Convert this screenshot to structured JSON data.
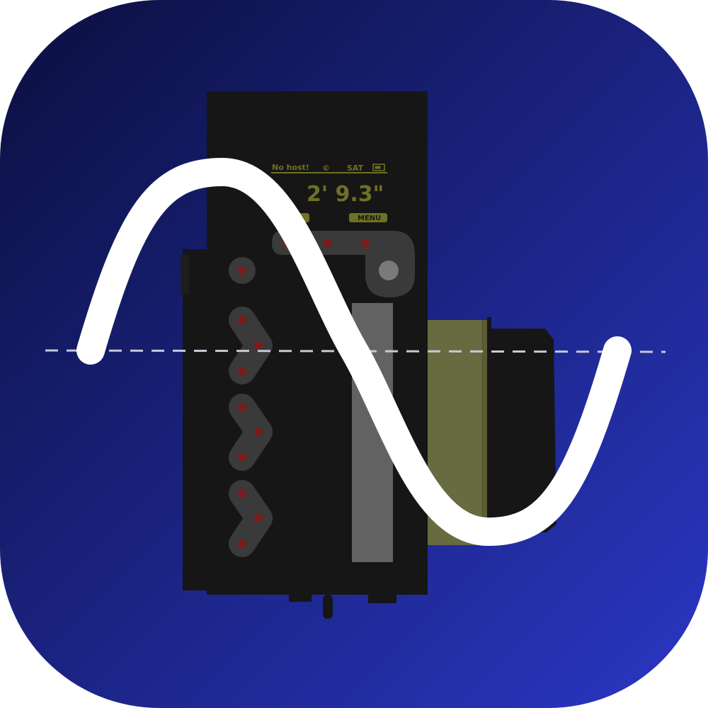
{
  "colors": {
    "background_start": "#0b0f3e",
    "background_end": "#2a37c4",
    "device_body": "#161616",
    "device_accent": "#686a40",
    "oled_text": "#6e7025",
    "led": "#7a1c1c",
    "control_pad": "#3a3a3a",
    "wave": "#ffffff",
    "baseline": "#c8c8d8"
  },
  "oled": {
    "status": "No host!",
    "record_icon": "©",
    "sat": "SAT",
    "battery_icon": "battery-icon",
    "readout": "2' 9.3\"",
    "menu_label": "MENU"
  },
  "icons": {
    "app_icon": "sine-wave-over-focus-motor-icon",
    "wave": "sine-wave-icon"
  }
}
